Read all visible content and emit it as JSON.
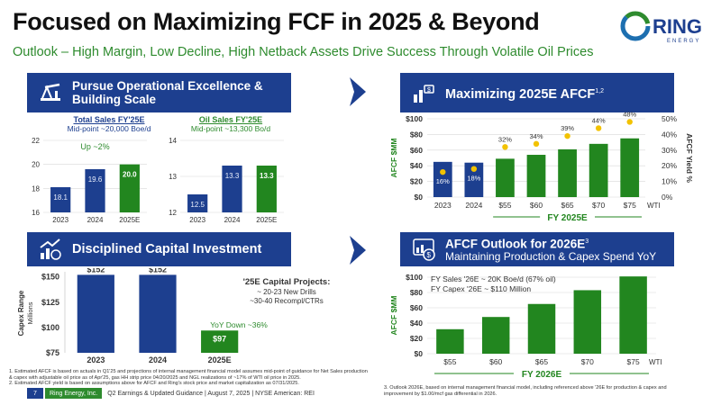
{
  "header": {
    "title": "Focused on Maximizing FCF in 2025 & Beyond",
    "subtitle": "Outlook – High Margin, Low Decline, High Netback Assets Drive Success Through Volatile Oil Prices",
    "logo_text": "RING",
    "logo_subtext": "ENERGY"
  },
  "panels": {
    "operational": {
      "line1": "Pursue Operational Excellence &",
      "line2": "Building Scale"
    },
    "fcf": {
      "title": "Maximizing 2025E AFCF",
      "sup": "1,2"
    },
    "capital": {
      "title": "Disciplined Capital Investment"
    },
    "outlook": {
      "title": "AFCF Outlook for 2026E",
      "sup": "3",
      "subtitle": "Maintaining Production & Capex Spend YoY"
    }
  },
  "colors": {
    "navy": "#1d3f8f",
    "green": "#22861f",
    "gold": "#f2c200",
    "label_green": "#2e8b2e"
  },
  "chart_data": [
    {
      "id": "total_sales",
      "type": "bar",
      "title": "Total Sales FY'25E",
      "subtitle": "Mid-point ~20,000 Boe/d",
      "categories": [
        "2023",
        "2024",
        "2025E"
      ],
      "values": [
        18.1,
        19.6,
        20.0
      ],
      "value_labels": [
        "18.1",
        "19.6",
        "20.0"
      ],
      "yticks": [
        "22",
        "20",
        "18",
        "16"
      ],
      "ylim": [
        16,
        22
      ],
      "annotation": "Up ~2%"
    },
    {
      "id": "oil_sales",
      "type": "bar",
      "title": "Oil Sales FY'25E",
      "subtitle": "Mid-point ~13,300 Bo/d",
      "categories": [
        "2023",
        "2024",
        "2025E"
      ],
      "values": [
        12.5,
        13.3,
        13.3
      ],
      "value_labels": [
        "12.5",
        "13.3",
        "13.3"
      ],
      "yticks": [
        "14",
        "13",
        "12"
      ],
      "ylim": [
        12,
        14
      ]
    },
    {
      "id": "afcf_2025",
      "type": "bar",
      "categories": [
        "2023",
        "2024",
        "$55",
        "$60",
        "$65",
        "$70",
        "$75"
      ],
      "values": [
        45,
        44,
        49,
        54,
        61,
        68,
        75
      ],
      "yield": [
        16,
        18,
        32,
        34,
        39,
        44,
        48
      ],
      "yield_labels": [
        "16%",
        "18%",
        "32%",
        "34%",
        "39%",
        "44%",
        "48%"
      ],
      "ylabel": "AFCF $MM",
      "y2label": "AFCF Yield %",
      "yticks": [
        "$100",
        "$80",
        "$60",
        "$40",
        "$20",
        "$0"
      ],
      "y2ticks": [
        "50%",
        "40%",
        "30%",
        "20%",
        "10%",
        "0%"
      ],
      "ylim": [
        0,
        100
      ],
      "y2lim": [
        0,
        50
      ],
      "wti_label": "WTI",
      "xgroup_label": "FY 2025E"
    },
    {
      "id": "capex",
      "type": "bar",
      "categories": [
        "2023",
        "2024",
        "2025E"
      ],
      "values": [
        152,
        152,
        97
      ],
      "value_labels": [
        "$152",
        "$152",
        "$97"
      ],
      "ylabel": "Capex Range",
      "ylabel2": "Millions",
      "yticks": [
        "$150",
        "$125",
        "$100",
        "$75"
      ],
      "ylim": [
        75,
        155
      ],
      "projects_title": "'25E Capital Projects:",
      "projects_1": "~ 20-23 New Drills",
      "projects_2": "~30-40 Recompl/CTRs",
      "annotation": "YoY Down ~36%"
    },
    {
      "id": "afcf_2026",
      "type": "bar",
      "categories": [
        "$55",
        "$60",
        "$65",
        "$70",
        "$75"
      ],
      "values": [
        32,
        48,
        65,
        83,
        101
      ],
      "ylabel": "AFCF $MM",
      "yticks": [
        "$100",
        "$80",
        "$60",
        "$40",
        "$20",
        "$0"
      ],
      "ylim": [
        0,
        100
      ],
      "note1": "FY Sales '26E ~ 20K Boe/d (67% oil)",
      "note2": "FY Capex '26E ~ $110 Million",
      "wti_label": "WTI",
      "xgroup_label": "FY 2026E"
    }
  ],
  "footnotes": {
    "left_1": "1. Estimated AFCF is based on actuals in Q1'25 and projections of internal management financial model assumes mid-point of guidance for Net Sales production & capex with adjustable oil price as of Apr'25, gas HH strip price 04/20/2025 and NGL realizations of ~17% of WTI oil price in 2025.",
    "left_2": "2. Estimated AFCF yield is based on assumptions above for AFCF and Ring's stock price and market capitalization as 07/31/2025.",
    "right_1": "3.    Outlook 2026E, based on internal management financial model, including referenced above '26E for production & capex and improvement by $1.00/mcf gas differential in 2026."
  },
  "footer": {
    "page": "7",
    "brand": "Ring Energy, Inc.",
    "text": "Q2 Earnings & Updated Guidance | August 7, 2025 | NYSE American: REI"
  }
}
